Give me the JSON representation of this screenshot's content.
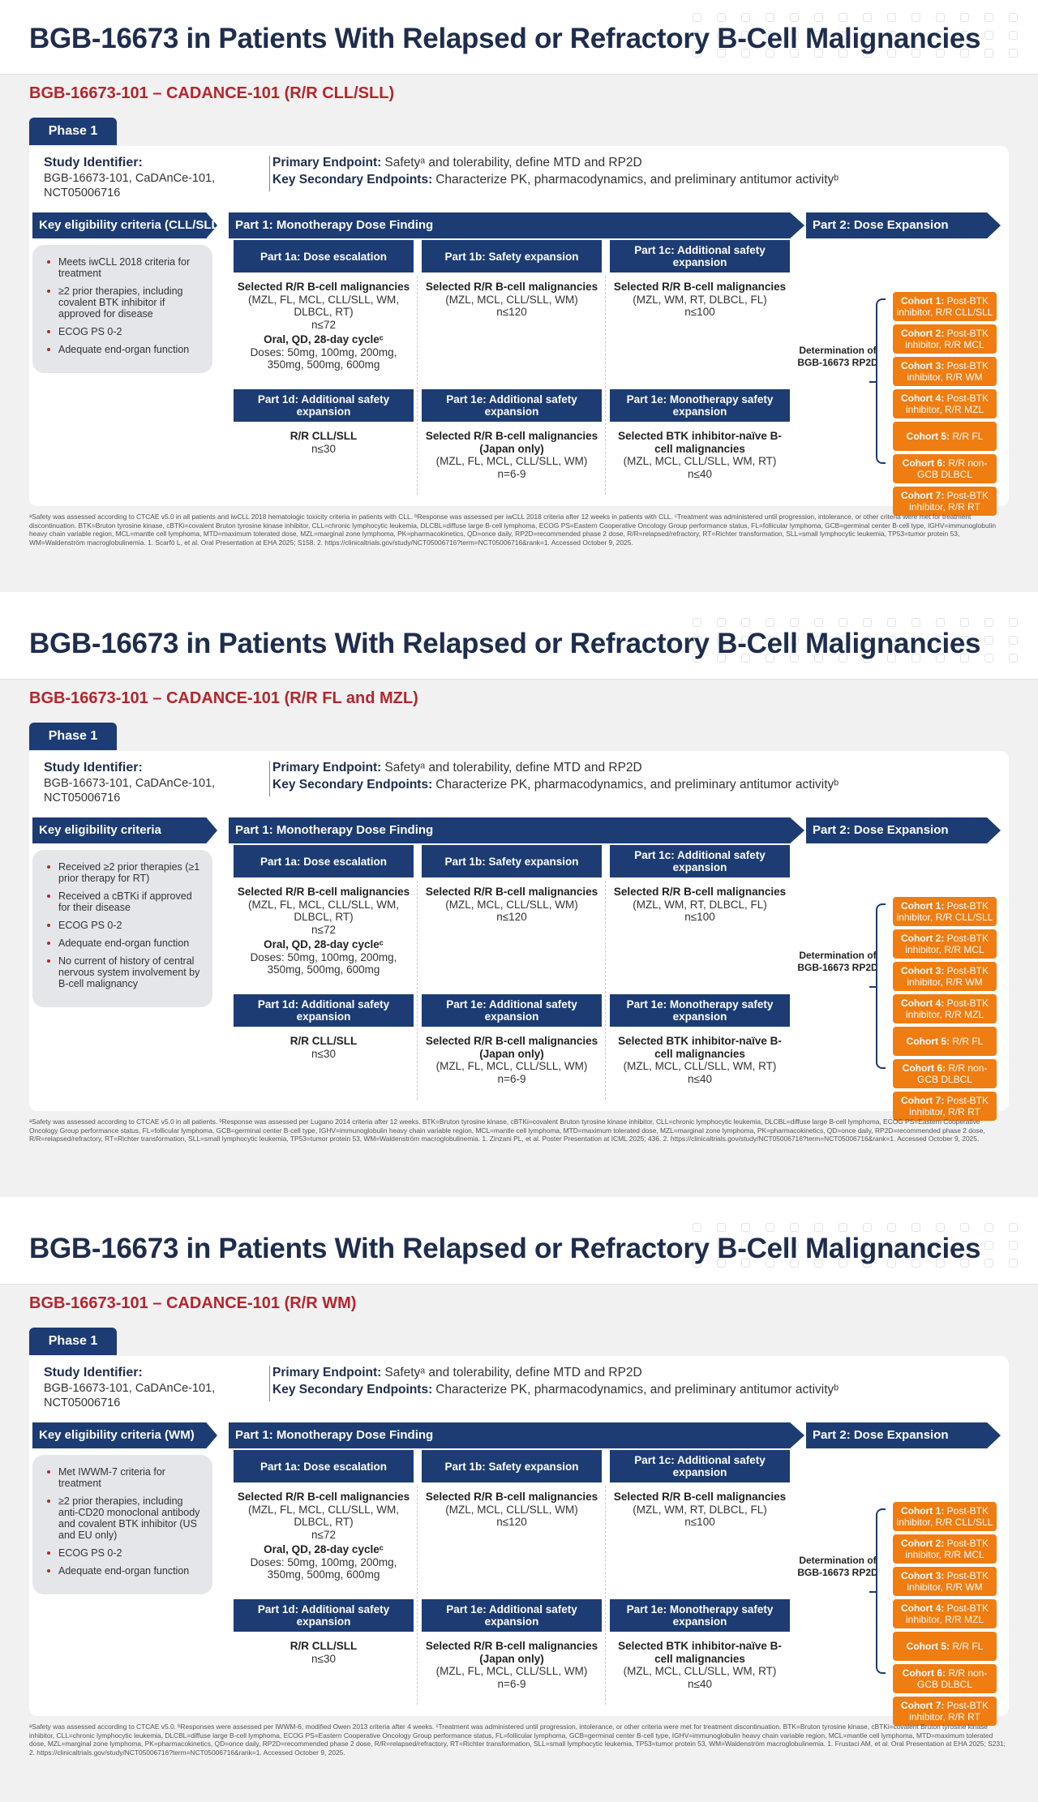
{
  "slides": [
    {
      "title": "BGB-16673 in Patients With Relapsed or Refractory B-Cell Malignancies",
      "study": "BGB-16673-101 – CADANCE-101 (R/R CLL/SLL)",
      "phase": "Phase 1",
      "sid_label": "Study Identifier:",
      "sid_value": "BGB-16673-101, CaDAnCe-101, NCT05006716",
      "ep_primary_label": "Primary Endpoint:",
      "ep_primary": "Safetyᵃ and tolerability, define MTD and RP2D",
      "ep_secondary_label": "Key Secondary Endpoints:",
      "ep_secondary": "Characterize PK, pharmacodynamics, and preliminary antitumor activityᵇ",
      "elig_header": "Key eligibility criteria (CLL/SLL)",
      "part1": "Part 1: Monotherapy Dose Finding",
      "part2": "Part 2: Dose Expansion",
      "elig": [
        "Meets iwCLL 2018 criteria for treatment",
        "≥2 prior therapies, including covalent BTK inhibitor if approved for disease",
        "ECOG PS 0-2",
        "Adequate end-organ function"
      ],
      "p1a": {
        "head": "Part 1a: Dose escalation",
        "l1": "Selected R/R B-cell malignancies",
        "l2": "(MZL, FL, MCL, CLL/SLL, WM, DLBCL, RT)",
        "n": "n≤72",
        "l3": "Oral, QD, 28-day cycleᶜ",
        "l4": "Doses: 50mg, 100mg, 200mg, 350mg, 500mg, 600mg"
      },
      "p1b": {
        "head": "Part 1b: Safety expansion",
        "l1": "Selected R/R B-cell malignancies",
        "l2": "(MZL, MCL, CLL/SLL, WM)",
        "n": "n≤120"
      },
      "p1c": {
        "head": "Part 1c: Additional safety expansion",
        "l1": "Selected R/R B-cell malignancies",
        "l2": "(MZL, WM, RT, DLBCL, FL)",
        "n": "n≤100"
      },
      "p1d": {
        "head": "Part 1d: Additional safety expansion",
        "l1": "R/R CLL/SLL",
        "n": "n≤30"
      },
      "p1e": {
        "head": "Part 1e: Additional safety expansion",
        "l1": "Selected R/R B-cell malignancies (Japan only)",
        "l2": "(MZL, FL, MCL, CLL/SLL, WM)",
        "n": "n=6-9"
      },
      "p1f": {
        "head": "Part 1e: Monotherapy safety expansion",
        "l1": "Selected BTK inhibitor-naïve B-cell malignancies",
        "l2": "(MZL, MCL, CLL/SLL, WM, RT)",
        "n": "n≤40"
      },
      "det": "Determination of BGB-16673 RP2D",
      "cohorts": [
        {
          "b": "Cohort 1:",
          "t": " Post-BTK inhibitor, R/R CLL/SLL"
        },
        {
          "b": "Cohort 2:",
          "t": " Post-BTK inhibitor, R/R MCL"
        },
        {
          "b": "Cohort 3:",
          "t": " Post-BTK inhibitor, R/R WM"
        },
        {
          "b": "Cohort 4:",
          "t": " Post-BTK inhibitor, R/R MZL"
        },
        {
          "b": "Cohort 5:",
          "t": " R/R FL"
        },
        {
          "b": "Cohort 6:",
          "t": " R/R non-GCB DLBCL"
        },
        {
          "b": "Cohort 7:",
          "t": " Post-BTK inhibitor, R/R RT"
        }
      ],
      "footnote": "ᵃSafety was assessed according to CTCAE v5.0 in all patients and iwCLL 2018 hematologic toxicity criteria in patients with CLL. ᵇResponse was assessed per iwCLL 2018 criteria after 12 weeks in patients with CLL. ᶜTreatment was administered until progression, intolerance, or other criteria were met for treatment discontinuation. BTK=Bruton tyrosine kinase, cBTKi=covalent Bruton tyrosine kinase inhibitor, CLL=chronic lymphocytic leukemia, DLCBL=diffuse large B-cell lymphoma, ECOG PS=Eastern Cooperative Oncology Group performance status, FL=follicular lymphoma, GCB=germinal center B-cell type, IGHV=immunoglobulin heavy chain variable region, MCL=mantle cell lymphoma, MTD=maximum tolerated dose, MZL=marginal zone lymphoma, PK=pharmacokinetics, QD=once daily, RP2D=recommended phase 2 dose, R/R=relapsed/refractory, RT=Richter transformation, SLL=small lymphocytic leukemia, TP53=tumor protein 53, WM=Waldenström macroglobulinemia. 1. Scarfò L, et al. Oral Presentation at EHA 2025; S158. 2. https://clinicaltrials.gov/study/NCT05006716?term=NCT05006716&rank=1. Accessed October 9, 2025."
    },
    {
      "title": "BGB-16673 in Patients With Relapsed or Refractory B-Cell Malignancies",
      "study": "BGB-16673-101 – CADANCE-101 (R/R FL and MZL)",
      "phase": "Phase 1",
      "sid_label": "Study Identifier:",
      "sid_value": "BGB-16673-101, CaDAnCe-101, NCT05006716",
      "ep_primary_label": "Primary Endpoint:",
      "ep_primary": "Safetyᵃ and tolerability, define MTD and RP2D",
      "ep_secondary_label": "Key Secondary Endpoints:",
      "ep_secondary": "Characterize PK, pharmacodynamics, and preliminary antitumor activityᵇ",
      "elig_header": "Key eligibility criteria",
      "part1": "Part 1: Monotherapy Dose Finding",
      "part2": "Part 2: Dose Expansion",
      "elig": [
        "Received ≥2 prior therapies (≥1 prior therapy for RT)",
        "Received a cBTKi if approved for their disease",
        "ECOG PS 0-2",
        "Adequate end-organ function",
        "No current of history of central nervous system involvement by B-cell malignancy"
      ],
      "p1a": {
        "head": "Part 1a: Dose escalation",
        "l1": "Selected R/R B-cell malignancies",
        "l2": "(MZL, FL, MCL, CLL/SLL, WM, DLBCL, RT)",
        "n": "n≤72",
        "l3": "Oral, QD, 28-day cycleᶜ",
        "l4": "Doses: 50mg, 100mg, 200mg, 350mg, 500mg, 600mg"
      },
      "p1b": {
        "head": "Part 1b: Safety expansion",
        "l1": "Selected R/R B-cell malignancies",
        "l2": "(MZL, MCL, CLL/SLL, WM)",
        "n": "n≤120"
      },
      "p1c": {
        "head": "Part 1c: Additional safety expansion",
        "l1": "Selected R/R B-cell malignancies",
        "l2": "(MZL, WM, RT, DLBCL, FL)",
        "n": "n≤100"
      },
      "p1d": {
        "head": "Part 1d: Additional safety expansion",
        "l1": "R/R CLL/SLL",
        "n": "n≤30"
      },
      "p1e": {
        "head": "Part 1e: Additional safety expansion",
        "l1": "Selected R/R B-cell malignancies (Japan only)",
        "l2": "(MZL, FL, MCL, CLL/SLL, WM)",
        "n": "n=6-9"
      },
      "p1f": {
        "head": "Part 1e: Monotherapy safety expansion",
        "l1": "Selected BTK inhibitor-naïve B-cell malignancies",
        "l2": "(MZL, MCL, CLL/SLL, WM, RT)",
        "n": "n≤40"
      },
      "det": "Determination of BGB-16673 RP2D",
      "cohorts": [
        {
          "b": "Cohort 1:",
          "t": " Post-BTK inhibitor, R/R CLL/SLL"
        },
        {
          "b": "Cohort 2:",
          "t": " Post-BTK inhibitor, R/R MCL"
        },
        {
          "b": "Cohort 3:",
          "t": " Post-BTK inhibitor, R/R WM"
        },
        {
          "b": "Cohort 4:",
          "t": " Post-BTK inhibitor, R/R MZL"
        },
        {
          "b": "Cohort 5:",
          "t": " R/R FL"
        },
        {
          "b": "Cohort 6:",
          "t": " R/R non-GCB DLBCL"
        },
        {
          "b": "Cohort 7:",
          "t": " Post-BTK inhibitor, R/R RT"
        }
      ],
      "footnote": "ᵃSafety was assessed according to CTCAE v5.0 in all patients. ᵇResponse was assessed per Lugano 2014 criteria after 12 weeks. BTK=Bruton tyrosine kinase, cBTKi=covalent Bruton tyrosine kinase inhibitor, CLL=chronic lymphocytic leukemia, DLCBL=diffuse large B-cell lymphoma, ECOG PS=Eastern Cooperative Oncology Group performance status, FL=follicular lymphoma, GCB=germinal center B-cell type, IGHV=immunoglobulin heavy chain variable region, MCL=mantle cell lymphoma, MTD=maximum tolerated dose, MZL=marginal zone lymphoma, PK=pharmacokinetics, QD=once daily, RP2D=recommended phase 2 dose, R/R=relapsed/refractory, RT=Richter transformation, SLL=small lymphocytic leukemia, TP53=tumor protein 53, WM=Waldenström macroglobulinemia. 1. Zinzani PL, et al. Poster Presentation at ICML 2025; 436. 2. https://clinicaltrials.gov/study/NCT05006716?term=NCT05006716&rank=1. Accessed October 9, 2025."
    },
    {
      "title": "BGB-16673 in Patients With Relapsed or Refractory B-Cell Malignancies",
      "study": "BGB-16673-101 – CADANCE-101 (R/R WM)",
      "phase": "Phase 1",
      "sid_label": "Study Identifier:",
      "sid_value": "BGB-16673-101, CaDAnCe-101, NCT05006716",
      "ep_primary_label": "Primary Endpoint:",
      "ep_primary": "Safetyᵃ and tolerability, define MTD and RP2D",
      "ep_secondary_label": "Key Secondary Endpoints:",
      "ep_secondary": "Characterize PK, pharmacodynamics, and preliminary antitumor activityᵇ",
      "elig_header": "Key eligibility criteria (WM)",
      "part1": "Part 1: Monotherapy Dose Finding",
      "part2": "Part 2: Dose Expansion",
      "elig": [
        "Met IWWM-7 criteria for treatment",
        "≥2 prior therapies, including anti-CD20 monoclonal antibody and covalent BTK inhibitor (US and EU only)",
        "ECOG PS 0-2",
        "Adequate end-organ function"
      ],
      "p1a": {
        "head": "Part 1a: Dose escalation",
        "l1": "Selected R/R B-cell malignancies",
        "l2": "(MZL, FL, MCL, CLL/SLL, WM, DLBCL, RT)",
        "n": "n≤72",
        "l3": "Oral, QD, 28-day cycleᶜ",
        "l4": "Doses: 50mg, 100mg, 200mg, 350mg, 500mg, 600mg"
      },
      "p1b": {
        "head": "Part 1b: Safety expansion",
        "l1": "Selected R/R B-cell malignancies",
        "l2": "(MZL, MCL, CLL/SLL, WM)",
        "n": "n≤120"
      },
      "p1c": {
        "head": "Part 1c: Additional safety expansion",
        "l1": "Selected R/R B-cell malignancies",
        "l2": "(MZL, WM, RT, DLBCL, FL)",
        "n": "n≤100"
      },
      "p1d": {
        "head": "Part 1d: Additional safety expansion",
        "l1": "R/R CLL/SLL",
        "n": "n≤30"
      },
      "p1e": {
        "head": "Part 1e: Additional safety expansion",
        "l1": "Selected R/R B-cell malignancies (Japan only)",
        "l2": "(MZL, FL, MCL, CLL/SLL, WM)",
        "n": "n=6-9"
      },
      "p1f": {
        "head": "Part 1e: Monotherapy safety expansion",
        "l1": "Selected BTK inhibitor-naïve B-cell malignancies",
        "l2": "(MZL, MCL, CLL/SLL, WM, RT)",
        "n": "n≤40"
      },
      "det": "Determination of BGB-16673 RP2D",
      "cohorts": [
        {
          "b": "Cohort 1:",
          "t": " Post-BTK inhibitor, R/R CLL/SLL"
        },
        {
          "b": "Cohort 2:",
          "t": " Post-BTK inhibitor, R/R MCL"
        },
        {
          "b": "Cohort 3:",
          "t": " Post-BTK inhibitor, R/R WM"
        },
        {
          "b": "Cohort 4:",
          "t": " Post-BTK inhibitor, R/R MZL"
        },
        {
          "b": "Cohort 5:",
          "t": " R/R FL"
        },
        {
          "b": "Cohort 6:",
          "t": " R/R non-GCB DLBCL"
        },
        {
          "b": "Cohort 7:",
          "t": " Post-BTK inhibitor, R/R RT"
        }
      ],
      "footnote": "ᵃSafety was assessed according to CTCAE v5.0. ᵇResponses were assessed per IWWM-6, modified Owen 2013 criteria after 4 weeks. ᶜTreatment was administered until progression, intolerance, or other criteria were met for treatment discontinuation. BTK=Bruton tyrosine kinase, cBTKi=covalent Bruton tyrosine kinase inhibitor, CLL=chronic lymphocytic leukemia, DLCBL=diffuse large B-cell lymphoma, ECOG PS=Eastern Cooperative Oncology Group performance status, FL=follicular lymphoma, GCB=germinal center B-cell type, IGHV=immunoglobulin heavy chain variable region, MCL=mantle cell lymphoma, MTD=maximum tolerated dose, MZL=marginal zone lymphoma, PK=pharmacokinetics, QD=once daily, RP2D=recommended phase 2 dose, R/R=relapsed/refractory, RT=Richter transformation, SLL=small lymphocytic leukemia, TP53=tumor protein 53, WM=Waldenström macroglobulinemia. 1. Frustaci AM, et al. Oral Presentation at EHA 2025; S231; 2. https://clinicaltrials.gov/study/NCT05006716?term=NCT05006716&rank=1. Accessed October 9, 2025."
    }
  ]
}
